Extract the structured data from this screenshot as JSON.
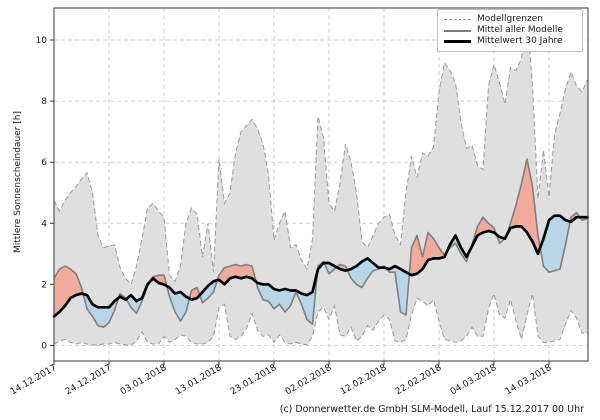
{
  "figure": {
    "background": "#ffffff"
  },
  "axes": {
    "ylabel": "Mittlere Sonnenscheindauer [h]",
    "yticks": [
      0,
      2,
      4,
      6,
      8,
      10
    ],
    "ylim": [
      -0.5,
      11.1
    ],
    "xtick_days": [
      0,
      10,
      20,
      30,
      40,
      50,
      60,
      70,
      80,
      90
    ],
    "xtick_labels": [
      "14.12.2017",
      "24.12.2017",
      "03.01.2018",
      "13.01.2018",
      "23.01.2018",
      "02.02.2018",
      "12.02.2018",
      "22.02.2018",
      "04.03.2018",
      "14.03.2018"
    ]
  },
  "legend": {
    "items": [
      {
        "label": "Modellgrenzen",
        "style": "dashed-gray"
      },
      {
        "label": "Mittel aller Modelle",
        "style": "solid-gray"
      },
      {
        "label": "Mittelwert 30 Jahre",
        "style": "solid-black"
      }
    ]
  },
  "caption": "(c) Donnerwetter.de GmbH SLM-Modell, Lauf 15.12.2017 00 Uhr",
  "colors": {
    "envelope_fill": "#dcdcdc",
    "envelope_line": "#9a9a9a",
    "above_fill": "#f0ab9d",
    "below_fill": "#b9d6e8",
    "model_mean_line": "#7f7f7f",
    "climate_mean_line": "#000000",
    "grid": "#d2d2d2",
    "spine": "#3a3a3a",
    "text": "#1a1a1a"
  },
  "chart_data": {
    "type": "line",
    "title": "",
    "xlabel": "",
    "ylabel": "Mittlere Sonnenscheindauer [h]",
    "x_unit": "days since 14.12.2017 (daily values, 14.12.2017 - 21.03.2018)",
    "n_points": 98,
    "ylim": [
      -0.5,
      11.1
    ],
    "grid": true,
    "legend_position": "upper right",
    "fills": [
      {
        "between": [
          "Modellgrenze oben",
          "Modellgrenze unten"
        ],
        "color": "#dcdcdc",
        "meaning": "model spread"
      },
      {
        "between": [
          "Mittel aller Modelle",
          "Mittelwert 30 Jahre"
        ],
        "color_above": "#f0ab9d",
        "color_below": "#b9d6e8",
        "meaning": "model mean above/below 30-year mean"
      }
    ],
    "series": [
      {
        "name": "Modellgrenze oben",
        "style": "dashed",
        "values": [
          4.75,
          4.4,
          4.75,
          5.0,
          5.2,
          5.45,
          5.65,
          5.0,
          3.6,
          3.2,
          3.25,
          3.3,
          2.55,
          2.2,
          2.0,
          2.6,
          3.5,
          4.5,
          4.65,
          4.4,
          4.2,
          2.3,
          2.1,
          2.6,
          4.0,
          4.5,
          4.3,
          2.9,
          4.0,
          2.4,
          6.1,
          4.65,
          5.0,
          6.3,
          7.0,
          7.2,
          7.4,
          7.1,
          6.6,
          5.6,
          3.45,
          4.0,
          4.4,
          3.2,
          3.3,
          2.8,
          2.5,
          3.5,
          7.5,
          6.8,
          4.65,
          4.4,
          5.3,
          6.6,
          6.0,
          5.0,
          3.4,
          3.2,
          3.6,
          4.0,
          4.2,
          4.3,
          3.6,
          3.3,
          5.0,
          6.2,
          5.5,
          6.3,
          6.2,
          6.5,
          8.3,
          9.25,
          9.0,
          8.6,
          7.3,
          6.45,
          6.55,
          5.9,
          5.75,
          8.5,
          9.2,
          8.6,
          7.9,
          9.1,
          9.0,
          9.4,
          10.85,
          8.5,
          4.8,
          6.4,
          4.85,
          6.9,
          7.6,
          8.4,
          8.95,
          8.5,
          8.3,
          8.7
        ]
      },
      {
        "name": "Modellgrenze unten",
        "style": "dashed",
        "values": [
          0.05,
          0.15,
          0.2,
          0.1,
          0.05,
          0.1,
          0.05,
          0.02,
          0.02,
          0.05,
          0.05,
          0.1,
          0.05,
          0.02,
          0.02,
          0.15,
          0.45,
          0.1,
          0.05,
          0.05,
          0.3,
          0.1,
          0.2,
          0.35,
          0.3,
          0.1,
          0.05,
          0.05,
          0.1,
          0.3,
          1.25,
          1.35,
          0.3,
          0.2,
          0.3,
          0.55,
          1.05,
          0.5,
          0.3,
          0.35,
          0.1,
          0.35,
          0.1,
          0.05,
          0.1,
          0.05,
          0.02,
          0.3,
          1.1,
          1.25,
          0.85,
          1.3,
          0.35,
          0.3,
          0.6,
          0.15,
          0.3,
          0.65,
          0.5,
          0.8,
          1.0,
          0.85,
          0.15,
          0.1,
          0.2,
          1.0,
          1.55,
          1.45,
          1.3,
          1.5,
          0.8,
          0.2,
          0.15,
          0.1,
          0.15,
          0.3,
          0.6,
          0.3,
          0.3,
          1.2,
          1.7,
          1.0,
          0.9,
          1.5,
          0.8,
          0.2,
          1.0,
          1.7,
          0.3,
          0.1,
          0.1,
          0.15,
          0.2,
          0.7,
          1.15,
          0.9,
          0.4,
          0.4
        ]
      },
      {
        "name": "Mittel aller Modelle",
        "style": "solid-gray",
        "values": [
          2.2,
          2.5,
          2.6,
          2.5,
          2.35,
          1.9,
          1.2,
          0.95,
          0.65,
          0.6,
          0.75,
          1.15,
          1.7,
          1.55,
          1.25,
          1.05,
          1.45,
          1.95,
          2.25,
          2.3,
          2.3,
          1.6,
          1.1,
          0.8,
          1.1,
          1.8,
          1.9,
          1.4,
          1.55,
          1.75,
          2.3,
          2.55,
          2.6,
          2.65,
          2.6,
          2.65,
          2.6,
          1.9,
          1.5,
          1.45,
          1.2,
          1.35,
          1.1,
          1.3,
          1.75,
          1.35,
          0.85,
          0.7,
          2.6,
          2.75,
          2.35,
          2.5,
          2.65,
          2.6,
          2.2,
          2.0,
          1.9,
          2.2,
          2.45,
          2.5,
          2.6,
          2.4,
          2.4,
          1.1,
          1.0,
          3.2,
          3.6,
          2.9,
          3.7,
          3.5,
          3.2,
          2.95,
          3.2,
          3.35,
          3.0,
          2.75,
          3.3,
          3.9,
          4.2,
          4.0,
          3.85,
          3.35,
          3.5,
          4.0,
          4.6,
          5.3,
          6.1,
          5.2,
          3.6,
          2.6,
          2.4,
          2.45,
          2.5,
          3.3,
          4.2,
          4.35,
          4.1,
          4.15
        ]
      },
      {
        "name": "Mittelwert 30 Jahre",
        "style": "solid-black",
        "values": [
          0.95,
          1.1,
          1.3,
          1.55,
          1.65,
          1.7,
          1.65,
          1.35,
          1.25,
          1.25,
          1.25,
          1.45,
          1.6,
          1.5,
          1.65,
          1.45,
          1.55,
          2.0,
          2.2,
          2.05,
          2.0,
          1.9,
          1.7,
          1.75,
          1.6,
          1.5,
          1.55,
          1.75,
          1.95,
          2.1,
          2.15,
          2.0,
          2.2,
          2.25,
          2.2,
          2.25,
          2.2,
          2.05,
          2.0,
          2.0,
          1.85,
          1.8,
          1.85,
          1.8,
          1.8,
          1.7,
          1.65,
          1.75,
          2.5,
          2.7,
          2.7,
          2.6,
          2.5,
          2.45,
          2.5,
          2.6,
          2.75,
          2.85,
          2.7,
          2.55,
          2.55,
          2.5,
          2.6,
          2.5,
          2.4,
          2.3,
          2.35,
          2.5,
          2.8,
          2.85,
          2.85,
          2.9,
          3.3,
          3.6,
          3.2,
          2.9,
          3.25,
          3.6,
          3.7,
          3.75,
          3.7,
          3.55,
          3.5,
          3.85,
          3.9,
          3.9,
          3.7,
          3.4,
          3.0,
          3.5,
          4.1,
          4.25,
          4.25,
          4.1,
          4.05,
          4.2,
          4.2,
          4.2
        ]
      }
    ]
  }
}
